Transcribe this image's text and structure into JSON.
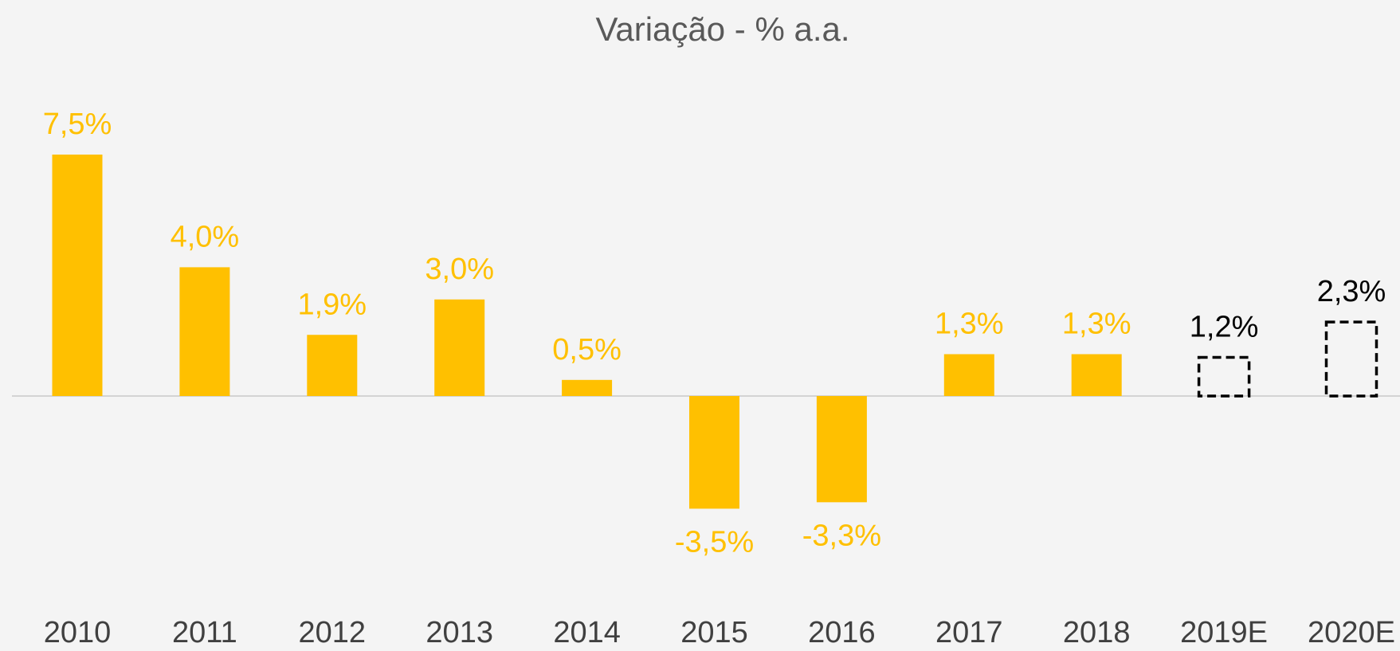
{
  "chart_data": {
    "type": "bar",
    "title": "Variação - % a.a.",
    "categories": [
      "2010",
      "2011",
      "2012",
      "2013",
      "2014",
      "2015",
      "2016",
      "2017",
      "2018",
      "2019E",
      "2020E"
    ],
    "values": [
      7.5,
      4.0,
      1.9,
      3.0,
      0.5,
      -3.5,
      -3.3,
      1.3,
      1.3,
      1.2,
      2.3
    ],
    "value_labels": [
      "7,5%",
      "4,0%",
      "1,9%",
      "3,0%",
      "0,5%",
      "-3,5%",
      "-3,3%",
      "1,3%",
      "1,3%",
      "1,2%",
      "2,3%"
    ],
    "dashed": [
      false,
      false,
      false,
      false,
      false,
      false,
      false,
      false,
      false,
      true,
      true
    ],
    "color": "#ffc000",
    "dashed_color": "#000000",
    "ylim": [
      -5,
      10
    ],
    "grid": false
  }
}
